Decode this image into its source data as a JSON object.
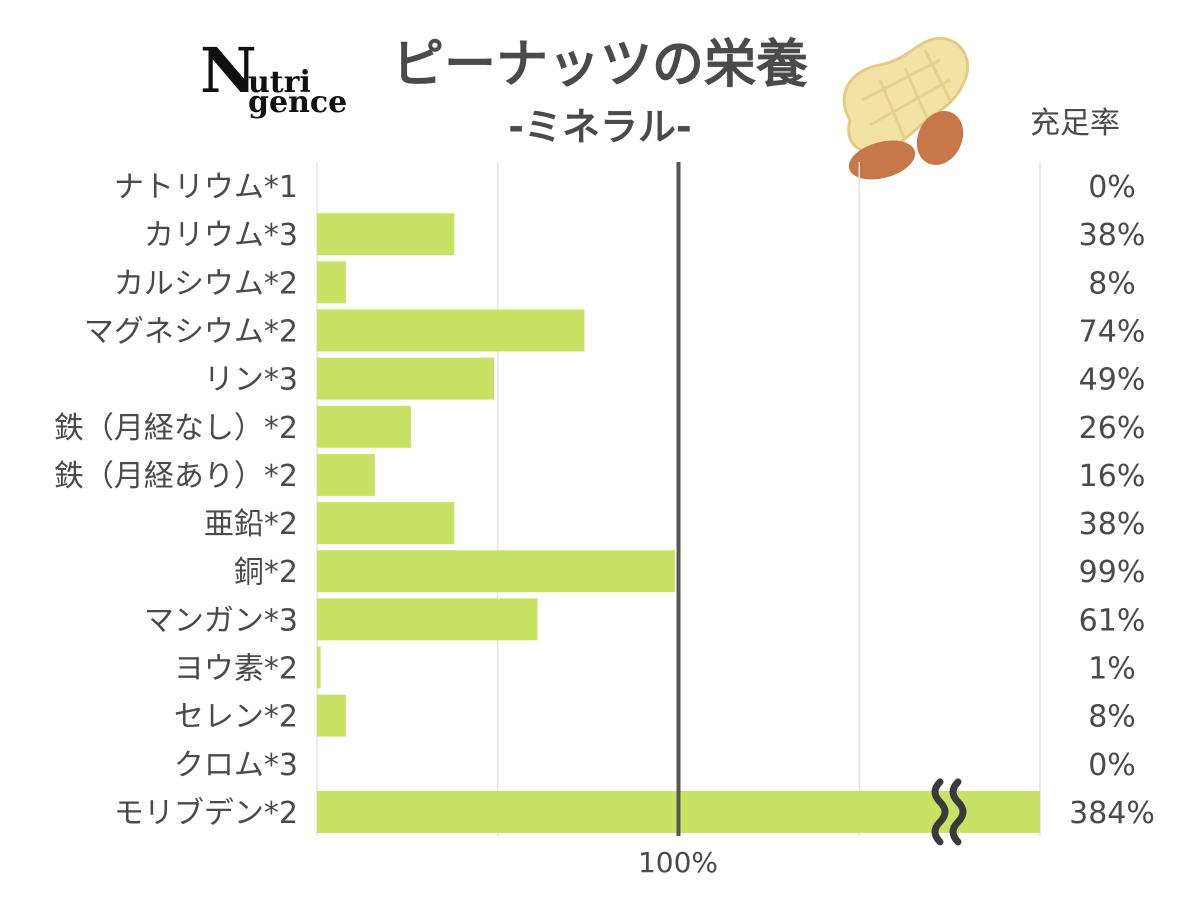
{
  "header": {
    "title": "ピーナッツの栄養",
    "subtitle": "-ミネラル-",
    "logo": "Nutrigence",
    "logo_lines": [
      "N",
      "utri",
      "gence"
    ],
    "pct_column_label": "充足率",
    "illustration": "peanut-icon"
  },
  "chart_data": {
    "type": "bar",
    "orientation": "horizontal",
    "title": "ピーナッツの栄養",
    "subtitle": "-ミネラル-",
    "categories": [
      "ナトリウム*1",
      "カリウム*3",
      "カルシウム*2",
      "マグネシウム*2",
      "リン*3",
      "鉄（月経なし）*2",
      "鉄（月経あり）*2",
      "亜鉛*2",
      "銅*2",
      "マンガン*3",
      "ヨウ素*2",
      "セレン*2",
      "クロム*3",
      "モリブデン*2"
    ],
    "values": [
      0,
      38,
      8,
      74,
      49,
      26,
      16,
      38,
      99,
      61,
      1,
      8,
      0,
      384
    ],
    "value_labels": [
      "0%",
      "38%",
      "8%",
      "74%",
      "49%",
      "26%",
      "16%",
      "38%",
      "99%",
      "61%",
      "1%",
      "8%",
      "0%",
      "384%"
    ],
    "xlim": [
      0,
      200
    ],
    "x_tick_label": "100%",
    "reference_line": 100,
    "axis_break": true,
    "grid": true,
    "bar_color": "#c9e265",
    "reference_line_color": "#555555"
  }
}
